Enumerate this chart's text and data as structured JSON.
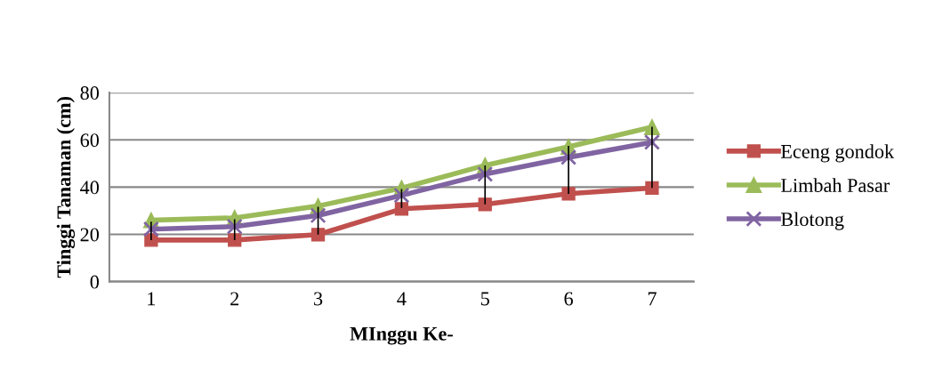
{
  "chart_data": {
    "type": "line",
    "xlabel": "MInggu Ke-",
    "ylabel": "Tinggi Tanaman (cm)",
    "categories": [
      "1",
      "2",
      "3",
      "4",
      "5",
      "6",
      "7"
    ],
    "series": [
      {
        "name": "Eceng gondok",
        "color": "#c0504d",
        "marker": "square",
        "values": [
          17.6,
          17.6,
          19.9,
          30.8,
          32.7,
          37.2,
          39.6
        ]
      },
      {
        "name": "Limbah Pasar",
        "color": "#9bbb59",
        "marker": "triangle",
        "values": [
          26,
          27,
          32,
          39.6,
          49.2,
          57.1,
          65.4
        ]
      },
      {
        "name": "Blotong",
        "color": "#8064a2",
        "marker": "cross",
        "values": [
          22.2,
          23.3,
          28,
          36.5,
          45.5,
          52.6,
          59
        ],
        "errors": [
          [
            17.6,
            25.4
          ],
          [
            17.6,
            26.4
          ],
          [
            19.9,
            31.7
          ],
          [
            31.2,
            39.2
          ],
          [
            32.7,
            49.2
          ],
          [
            37.1,
            57.5
          ],
          [
            39.7,
            65.6
          ]
        ]
      }
    ],
    "ylim": [
      0,
      80
    ],
    "yticks": [
      0,
      20,
      40,
      60,
      80
    ],
    "grid": "y",
    "legend": "right"
  }
}
